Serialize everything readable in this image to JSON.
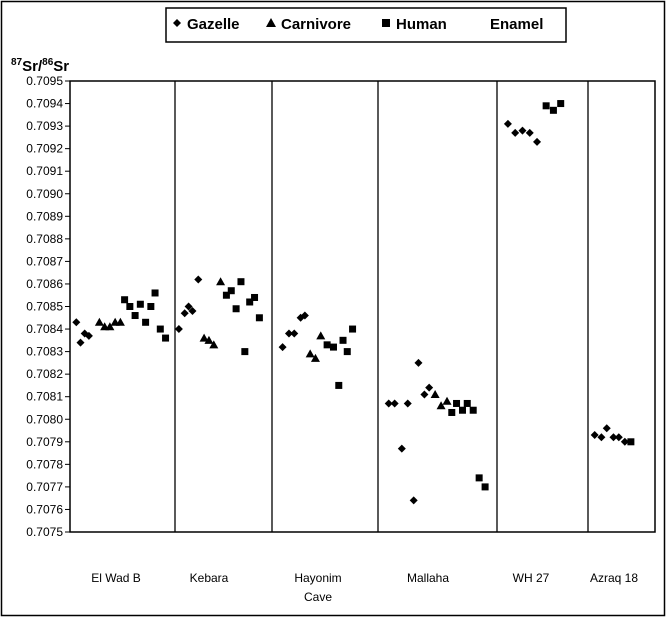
{
  "chart_data": {
    "type": "scatter",
    "ylabel": {
      "sup1": "87",
      "text1": "Sr/",
      "sup2": "86",
      "text2": "Sr"
    },
    "ylim": [
      0.7075,
      0.7095
    ],
    "yticks": [
      "0.7075",
      "0.7076",
      "0.7077",
      "0.7078",
      "0.7079",
      "0.7080",
      "0.7081",
      "0.7082",
      "0.7083",
      "0.7084",
      "0.7085",
      "0.7086",
      "0.7087",
      "0.7088",
      "0.7089",
      "0.7090",
      "0.7091",
      "0.7092",
      "0.7093",
      "0.7094",
      "0.7095"
    ],
    "legend": {
      "placement": "top-center",
      "entries": [
        "Gazelle",
        "Carnivore",
        "Human"
      ],
      "extra": "Enamel"
    },
    "sites": [
      {
        "name": "El Wad B",
        "name_line2": ""
      },
      {
        "name": "Kebara",
        "name_line2": ""
      },
      {
        "name": "Hayonim",
        "name_line2": "Cave"
      },
      {
        "name": "Mallaha",
        "name_line2": ""
      },
      {
        "name": "WH 27",
        "name_line2": ""
      },
      {
        "name": "Azraq 18",
        "name_line2": ""
      }
    ],
    "series": [
      {
        "name": "Gazelle",
        "marker": "diamond",
        "points": [
          {
            "site": 0,
            "pos": 0.06,
            "y": 0.70843
          },
          {
            "site": 0,
            "pos": 0.1,
            "y": 0.70834
          },
          {
            "site": 0,
            "pos": 0.14,
            "y": 0.70838
          },
          {
            "site": 0,
            "pos": 0.18,
            "y": 0.70837
          },
          {
            "site": 1,
            "pos": 0.04,
            "y": 0.7084
          },
          {
            "site": 1,
            "pos": 0.1,
            "y": 0.70847
          },
          {
            "site": 1,
            "pos": 0.14,
            "y": 0.7085
          },
          {
            "site": 1,
            "pos": 0.18,
            "y": 0.70848
          },
          {
            "site": 1,
            "pos": 0.24,
            "y": 0.70862
          },
          {
            "site": 2,
            "pos": 0.1,
            "y": 0.70832
          },
          {
            "site": 2,
            "pos": 0.16,
            "y": 0.70838
          },
          {
            "site": 2,
            "pos": 0.21,
            "y": 0.70838
          },
          {
            "site": 2,
            "pos": 0.27,
            "y": 0.70845
          },
          {
            "site": 2,
            "pos": 0.31,
            "y": 0.70846
          },
          {
            "site": 3,
            "pos": 0.09,
            "y": 0.70807
          },
          {
            "site": 3,
            "pos": 0.14,
            "y": 0.70807
          },
          {
            "site": 3,
            "pos": 0.2,
            "y": 0.70787
          },
          {
            "site": 3,
            "pos": 0.25,
            "y": 0.70807
          },
          {
            "site": 3,
            "pos": 0.3,
            "y": 0.70764
          },
          {
            "site": 3,
            "pos": 0.34,
            "y": 0.70825
          },
          {
            "site": 3,
            "pos": 0.39,
            "y": 0.70811
          },
          {
            "site": 3,
            "pos": 0.43,
            "y": 0.70814
          },
          {
            "site": 4,
            "pos": 0.12,
            "y": 0.70931
          },
          {
            "site": 4,
            "pos": 0.2,
            "y": 0.70927
          },
          {
            "site": 4,
            "pos": 0.28,
            "y": 0.70928
          },
          {
            "site": 4,
            "pos": 0.36,
            "y": 0.70927
          },
          {
            "site": 4,
            "pos": 0.44,
            "y": 0.70923
          },
          {
            "site": 5,
            "pos": 0.1,
            "y": 0.70793
          },
          {
            "site": 5,
            "pos": 0.2,
            "y": 0.70792
          },
          {
            "site": 5,
            "pos": 0.28,
            "y": 0.70796
          },
          {
            "site": 5,
            "pos": 0.38,
            "y": 0.70792
          },
          {
            "site": 5,
            "pos": 0.46,
            "y": 0.70792
          },
          {
            "site": 5,
            "pos": 0.55,
            "y": 0.7079
          }
        ]
      },
      {
        "name": "Carnivore",
        "marker": "triangle",
        "points": [
          {
            "site": 0,
            "pos": 0.28,
            "y": 0.70843
          },
          {
            "site": 0,
            "pos": 0.33,
            "y": 0.70841
          },
          {
            "site": 0,
            "pos": 0.38,
            "y": 0.70841
          },
          {
            "site": 0,
            "pos": 0.43,
            "y": 0.70843
          },
          {
            "site": 0,
            "pos": 0.48,
            "y": 0.70843
          },
          {
            "site": 1,
            "pos": 0.3,
            "y": 0.70836
          },
          {
            "site": 1,
            "pos": 0.35,
            "y": 0.70835
          },
          {
            "site": 1,
            "pos": 0.4,
            "y": 0.70833
          },
          {
            "site": 1,
            "pos": 0.47,
            "y": 0.70861
          },
          {
            "site": 2,
            "pos": 0.36,
            "y": 0.70829
          },
          {
            "site": 2,
            "pos": 0.41,
            "y": 0.70827
          },
          {
            "site": 2,
            "pos": 0.46,
            "y": 0.70837
          },
          {
            "site": 3,
            "pos": 0.48,
            "y": 0.70811
          },
          {
            "site": 3,
            "pos": 0.53,
            "y": 0.70806
          },
          {
            "site": 3,
            "pos": 0.58,
            "y": 0.70808
          }
        ]
      },
      {
        "name": "Human",
        "marker": "square",
        "points": [
          {
            "site": 0,
            "pos": 0.52,
            "y": 0.70853
          },
          {
            "site": 0,
            "pos": 0.57,
            "y": 0.7085
          },
          {
            "site": 0,
            "pos": 0.62,
            "y": 0.70846
          },
          {
            "site": 0,
            "pos": 0.67,
            "y": 0.70851
          },
          {
            "site": 0,
            "pos": 0.72,
            "y": 0.70843
          },
          {
            "site": 0,
            "pos": 0.77,
            "y": 0.7085
          },
          {
            "site": 0,
            "pos": 0.81,
            "y": 0.70856
          },
          {
            "site": 0,
            "pos": 0.86,
            "y": 0.7084
          },
          {
            "site": 0,
            "pos": 0.91,
            "y": 0.70836
          },
          {
            "site": 1,
            "pos": 0.53,
            "y": 0.70855
          },
          {
            "site": 1,
            "pos": 0.58,
            "y": 0.70857
          },
          {
            "site": 1,
            "pos": 0.63,
            "y": 0.70849
          },
          {
            "site": 1,
            "pos": 0.68,
            "y": 0.70861
          },
          {
            "site": 1,
            "pos": 0.72,
            "y": 0.7083
          },
          {
            "site": 1,
            "pos": 0.77,
            "y": 0.70852
          },
          {
            "site": 1,
            "pos": 0.82,
            "y": 0.70854
          },
          {
            "site": 1,
            "pos": 0.87,
            "y": 0.70845
          },
          {
            "site": 2,
            "pos": 0.52,
            "y": 0.70833
          },
          {
            "site": 2,
            "pos": 0.58,
            "y": 0.70832
          },
          {
            "site": 2,
            "pos": 0.63,
            "y": 0.70815
          },
          {
            "site": 2,
            "pos": 0.67,
            "y": 0.70835
          },
          {
            "site": 2,
            "pos": 0.71,
            "y": 0.7083
          },
          {
            "site": 2,
            "pos": 0.76,
            "y": 0.7084
          },
          {
            "site": 3,
            "pos": 0.62,
            "y": 0.70803
          },
          {
            "site": 3,
            "pos": 0.66,
            "y": 0.70807
          },
          {
            "site": 3,
            "pos": 0.71,
            "y": 0.70804
          },
          {
            "site": 3,
            "pos": 0.75,
            "y": 0.70807
          },
          {
            "site": 3,
            "pos": 0.8,
            "y": 0.70804
          },
          {
            "site": 3,
            "pos": 0.85,
            "y": 0.70774
          },
          {
            "site": 3,
            "pos": 0.9,
            "y": 0.7077
          },
          {
            "site": 4,
            "pos": 0.54,
            "y": 0.70939
          },
          {
            "site": 4,
            "pos": 0.62,
            "y": 0.70937
          },
          {
            "site": 4,
            "pos": 0.7,
            "y": 0.7094
          },
          {
            "site": 5,
            "pos": 0.64,
            "y": 0.7079
          }
        ]
      }
    ]
  }
}
